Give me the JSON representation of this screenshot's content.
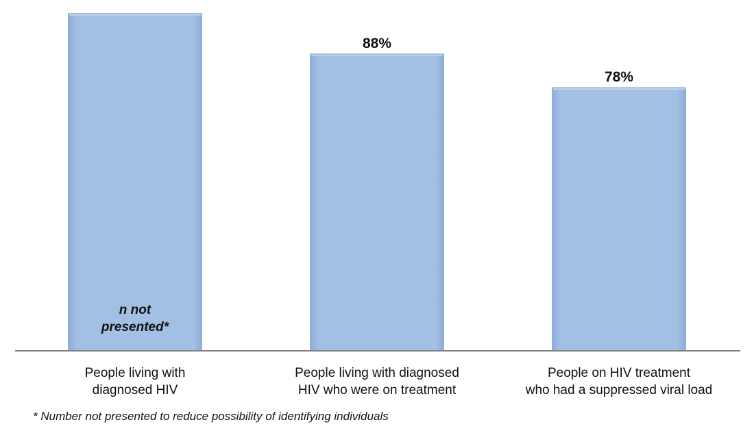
{
  "chart_data": {
    "type": "bar",
    "title": "",
    "xlabel": "",
    "ylabel": "",
    "ylim": [
      0,
      100
    ],
    "grid": false,
    "categories": [
      [
        "People living with",
        "diagnosed HIV"
      ],
      [
        "People living with diagnosed",
        "HIV who were on treatment"
      ],
      [
        "People on HIV treatment",
        "who had a suppressed viral load"
      ]
    ],
    "values": [
      100,
      88,
      78
    ],
    "data_labels": [
      "",
      "88%",
      "78%"
    ],
    "inner_note": [
      "n not",
      "presented*"
    ],
    "bar_color": "#a3bfe3",
    "bar_border_color": "#7f9fc9",
    "axis_color": "#7f7f7f"
  },
  "footnote": "* Number not presented to reduce possibility of identifying individuals"
}
